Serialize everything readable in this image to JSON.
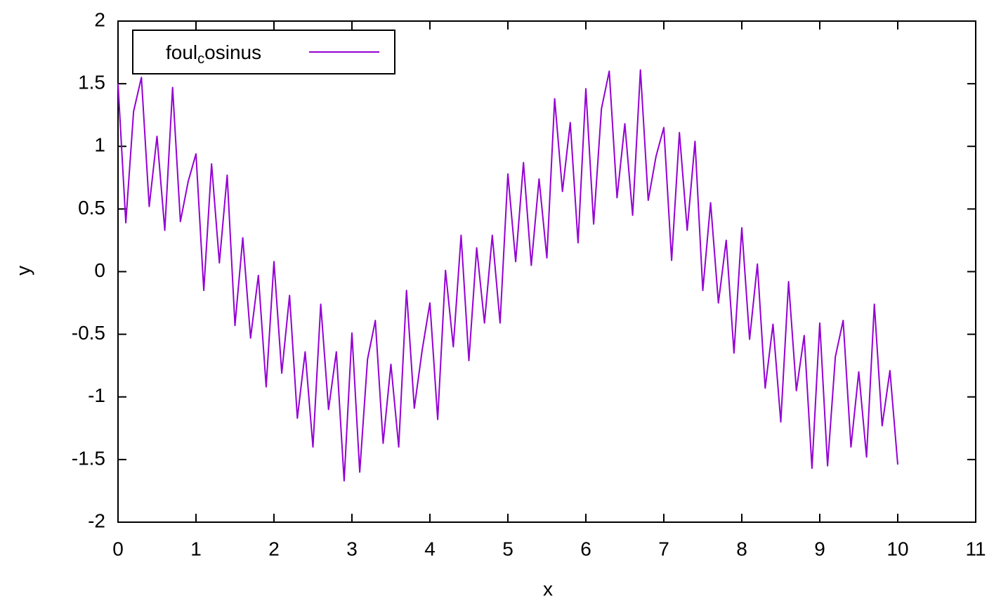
{
  "chart_data": {
    "type": "line",
    "xlabel": "x",
    "ylabel": "y",
    "x": [
      0,
      0.1,
      0.2,
      0.3,
      0.4,
      0.5,
      0.6,
      0.7,
      0.8,
      0.9,
      1,
      1.1,
      1.2,
      1.3,
      1.4,
      1.5,
      1.6,
      1.7,
      1.8,
      1.9,
      2,
      2.1,
      2.2,
      2.3,
      2.4,
      2.5,
      2.6,
      2.7,
      2.8,
      2.9,
      3,
      3.1,
      3.2,
      3.3,
      3.4,
      3.5,
      3.6,
      3.7,
      3.8,
      3.9,
      4,
      4.1,
      4.2,
      4.3,
      4.4,
      4.5,
      4.6,
      4.7,
      4.8,
      4.9,
      5,
      5.1,
      5.2,
      5.3,
      5.4,
      5.5,
      5.6,
      5.7,
      5.8,
      5.9,
      6,
      6.1,
      6.2,
      6.3,
      6.4,
      6.5,
      6.6,
      6.7,
      6.8,
      6.9,
      7,
      7.1,
      7.2,
      7.3,
      7.4,
      7.5,
      7.6,
      7.7,
      7.8,
      7.9,
      8,
      8.1,
      8.2,
      8.3,
      8.4,
      8.5,
      8.6,
      8.7,
      8.8,
      8.9,
      9,
      9.1,
      9.2,
      9.3,
      9.4,
      9.5,
      9.6,
      9.7,
      9.8,
      9.9,
      10
    ],
    "series": [
      {
        "name": [
          "foul",
          "c",
          "osinus"
        ],
        "color": "#9400d3",
        "values": [
          1.5,
          0.39,
          1.28,
          1.55,
          0.52,
          1.08,
          0.33,
          1.47,
          0.4,
          0.72,
          0.94,
          -0.15,
          0.86,
          0.07,
          0.77,
          -0.43,
          0.27,
          -0.53,
          -0.03,
          -0.92,
          0.08,
          -0.81,
          -0.19,
          -1.17,
          -0.64,
          -1.4,
          -0.26,
          -1.1,
          -0.64,
          -1.67,
          -0.49,
          -1.6,
          -0.7,
          -0.39,
          -1.37,
          -0.74,
          -1.4,
          -0.15,
          -1.09,
          -0.63,
          -0.25,
          -1.18,
          0.01,
          -0.6,
          0.29,
          -0.71,
          0.19,
          -0.41,
          0.29,
          -0.41,
          0.78,
          0.08,
          0.87,
          0.05,
          0.74,
          0.11,
          1.38,
          0.64,
          1.19,
          0.23,
          1.46,
          0.38,
          1.3,
          1.6,
          0.59,
          1.18,
          0.45,
          1.61,
          0.57,
          0.92,
          1.15,
          0.09,
          1.11,
          0.33,
          1.04,
          -0.15,
          0.55,
          -0.25,
          0.25,
          -0.65,
          0.35,
          -0.54,
          0.06,
          -0.93,
          -0.42,
          -1.2,
          -0.08,
          -0.95,
          -0.51,
          -1.57,
          -0.41,
          -1.55,
          -0.68,
          -0.39,
          -1.4,
          -0.8,
          -1.48,
          -0.26,
          -1.23,
          -0.79,
          -1.54
        ]
      }
    ],
    "xlim": [
      0,
      11
    ],
    "xticks": [
      0,
      1,
      2,
      3,
      4,
      5,
      6,
      7,
      8,
      9,
      10,
      11
    ],
    "ylim": [
      -2,
      2
    ],
    "yticks": [
      -2,
      -1.5,
      -1,
      -0.5,
      0,
      0.5,
      1,
      1.5,
      2
    ],
    "legend": "upper left",
    "grid": false
  }
}
